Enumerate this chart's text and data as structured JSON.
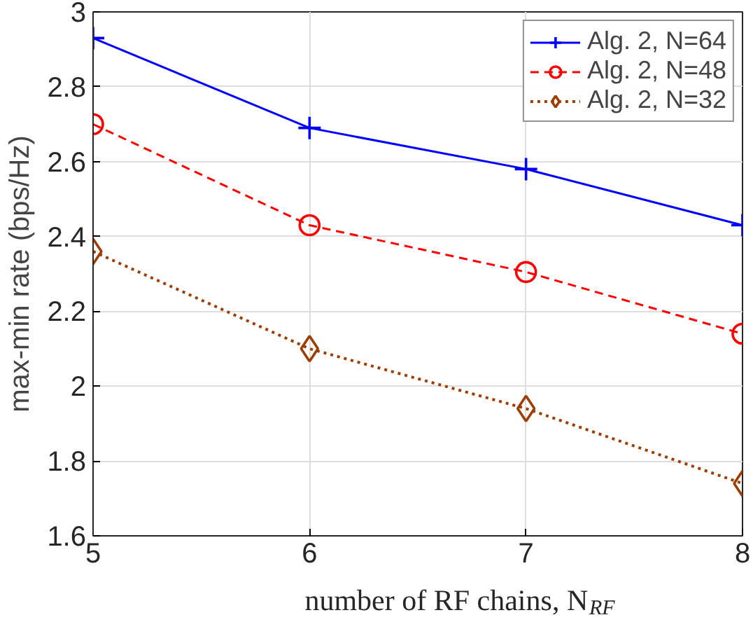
{
  "chart_data": {
    "type": "line",
    "xlabel": "number of RF chains, N$_{RF}$",
    "ylabel": "max-min rate (bps/Hz)",
    "x": [
      5,
      6,
      7,
      8
    ],
    "series": [
      {
        "name": "Alg. 2, N=64",
        "color": "#0000ff",
        "values": [
          2.93,
          2.69,
          2.58,
          2.43
        ],
        "marker": "cross",
        "line_style": "solid"
      },
      {
        "name": "Alg. 2, N=48",
        "color": "#ff0000",
        "values": [
          2.7,
          2.43,
          2.305,
          2.14
        ],
        "marker": "circle",
        "line_style": "dashed"
      },
      {
        "name": "Alg. 2, N=32",
        "color": "#9e3d00",
        "values": [
          2.36,
          2.1,
          1.94,
          1.74
        ],
        "marker": "diamond",
        "line_style": "dotted"
      }
    ],
    "xlim": [
      5,
      8
    ],
    "ylim": [
      1.6,
      3
    ],
    "xticks": [
      5,
      6,
      7,
      8
    ],
    "yticks": [
      1.6,
      1.8,
      2,
      2.2,
      2.4,
      2.6,
      2.8,
      3
    ],
    "grid": true,
    "legend": "top right"
  }
}
